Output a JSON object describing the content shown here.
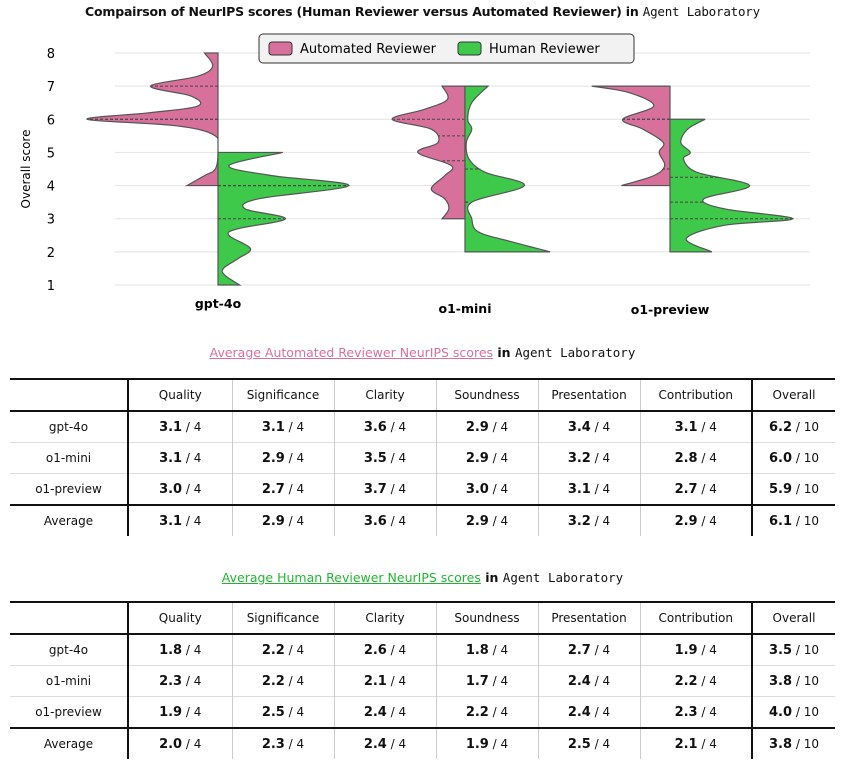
{
  "chart_data": {
    "type": "violin",
    "title_prefix": "Compairson of NeurIPS scores (Human Reviewer versus Automated Reviewer) in",
    "title_mono": "Agent Laboratory",
    "ylabel": "Overall score",
    "ylim": [
      1,
      8
    ],
    "yticks": [
      "1",
      "2",
      "3",
      "4",
      "5",
      "6",
      "7",
      "8"
    ],
    "categories": [
      "gpt-4o",
      "o1-mini",
      "o1-preview"
    ],
    "grid": true,
    "legend_placement": "top-center",
    "series": [
      {
        "name": "Automated Reviewer",
        "color": "#d8709c",
        "side": "left",
        "violins": [
          {
            "density": [
              [
                4,
                0.23
              ],
              [
                4.3,
                0.1
              ],
              [
                4.5,
                0.02
              ],
              [
                5,
                0.0
              ],
              [
                5.5,
                0.02
              ],
              [
                5.8,
                0.3
              ],
              [
                6,
                0.97
              ],
              [
                6.2,
                0.5
              ],
              [
                6.4,
                0.15
              ],
              [
                6.7,
                0.2
              ],
              [
                7,
                0.5
              ],
              [
                7.3,
                0.15
              ],
              [
                7.6,
                0.04
              ],
              [
                8,
                0.1
              ]
            ],
            "quartiles": [
              6,
              6,
              7
            ]
          },
          {
            "density": [
              [
                3,
                0.17
              ],
              [
                3.3,
                0.12
              ],
              [
                3.6,
                0.15
              ],
              [
                3.9,
                0.25
              ],
              [
                4.3,
                0.15
              ],
              [
                4.6,
                0.1
              ],
              [
                5,
                0.35
              ],
              [
                5.3,
                0.2
              ],
              [
                5.7,
                0.25
              ],
              [
                6,
                0.54
              ],
              [
                6.3,
                0.3
              ],
              [
                6.6,
                0.13
              ],
              [
                7,
                0.17
              ]
            ],
            "quartiles": [
              4.75,
              5.5,
              6
            ]
          },
          {
            "density": [
              [
                4,
                0.36
              ],
              [
                4.3,
                0.12
              ],
              [
                4.6,
                0.04
              ],
              [
                5,
                0.08
              ],
              [
                5.3,
                0.05
              ],
              [
                5.7,
                0.2
              ],
              [
                6,
                0.35
              ],
              [
                6.4,
                0.12
              ],
              [
                6.8,
                0.3
              ],
              [
                7,
                0.58
              ]
            ],
            "quartiles": [
              4.5,
              6,
              6
            ]
          }
        ]
      },
      {
        "name": "Human Reviewer",
        "color": "#3ec94b",
        "side": "right",
        "violins": [
          {
            "density": [
              [
                1,
                0.16
              ],
              [
                1.3,
                0.05
              ],
              [
                1.5,
                0.04
              ],
              [
                1.8,
                0.15
              ],
              [
                2.1,
                0.24
              ],
              [
                2.5,
                0.08
              ],
              [
                2.7,
                0.15
              ],
              [
                3,
                0.5
              ],
              [
                3.3,
                0.2
              ],
              [
                3.6,
                0.3
              ],
              [
                4,
                0.97
              ],
              [
                4.3,
                0.4
              ],
              [
                4.6,
                0.08
              ],
              [
                5,
                0.48
              ]
            ],
            "quartiles": [
              3,
              4,
              4
            ]
          },
          {
            "density": [
              [
                2,
                0.63
              ],
              [
                2.3,
                0.35
              ],
              [
                2.6,
                0.1
              ],
              [
                3,
                0.05
              ],
              [
                3.5,
                0.05
              ],
              [
                4,
                0.44
              ],
              [
                4.4,
                0.15
              ],
              [
                4.8,
                0.03
              ],
              [
                5.3,
                0.01
              ],
              [
                5.7,
                0.05
              ],
              [
                6,
                0.02
              ],
              [
                6.5,
                0.05
              ],
              [
                7,
                0.17
              ]
            ],
            "quartiles": [
              3.5,
              3.5,
              4.5
            ]
          },
          {
            "density": [
              [
                2,
                0.31
              ],
              [
                2.4,
                0.12
              ],
              [
                2.8,
                0.4
              ],
              [
                3,
                0.91
              ],
              [
                3.3,
                0.4
              ],
              [
                3.6,
                0.25
              ],
              [
                4,
                0.59
              ],
              [
                4.4,
                0.2
              ],
              [
                4.8,
                0.1
              ],
              [
                5,
                0.15
              ],
              [
                5.3,
                0.08
              ],
              [
                5.7,
                0.13
              ],
              [
                6,
                0.26
              ]
            ],
            "quartiles": [
              3,
              3.5,
              4.25
            ]
          }
        ]
      }
    ]
  },
  "tables": {
    "columns": [
      "Quality",
      "Significance",
      "Clarity",
      "Soundness",
      "Presentation",
      "Contribution",
      "Overall"
    ],
    "automated": {
      "title_link": "Average Automated Reviewer NeurIPS scores",
      "title_in": "in",
      "title_mono": "Agent Laboratory",
      "link_color": "#d8709c",
      "rows": [
        {
          "label": "gpt-4o",
          "cells": [
            [
              "3.1",
              "/ 4"
            ],
            [
              "3.1",
              "/ 4"
            ],
            [
              "3.6",
              "/ 4"
            ],
            [
              "2.9",
              "/ 4"
            ],
            [
              "3.4",
              "/ 4"
            ],
            [
              "3.1",
              "/ 4"
            ],
            [
              "6.2",
              "/ 10"
            ]
          ]
        },
        {
          "label": "o1-mini",
          "cells": [
            [
              "3.1",
              "/ 4"
            ],
            [
              "2.9",
              "/ 4"
            ],
            [
              "3.5",
              "/ 4"
            ],
            [
              "2.9",
              "/ 4"
            ],
            [
              "3.2",
              "/ 4"
            ],
            [
              "2.8",
              "/ 4"
            ],
            [
              "6.0",
              "/ 10"
            ]
          ]
        },
        {
          "label": "o1-preview",
          "cells": [
            [
              "3.0",
              "/ 4"
            ],
            [
              "2.7",
              "/ 4"
            ],
            [
              "3.7",
              "/ 4"
            ],
            [
              "3.0",
              "/ 4"
            ],
            [
              "3.1",
              "/ 4"
            ],
            [
              "2.7",
              "/ 4"
            ],
            [
              "5.9",
              "/ 10"
            ]
          ]
        },
        {
          "label": "Average",
          "cells": [
            [
              "3.1",
              "/ 4"
            ],
            [
              "2.9",
              "/ 4"
            ],
            [
              "3.6",
              "/ 4"
            ],
            [
              "2.9",
              "/ 4"
            ],
            [
              "3.2",
              "/ 4"
            ],
            [
              "2.9",
              "/ 4"
            ],
            [
              "6.1",
              "/ 10"
            ]
          ]
        }
      ]
    },
    "human": {
      "title_link": "Average Human Reviewer NeurIPS scores",
      "title_in": "in",
      "title_mono": "Agent Laboratory",
      "link_color": "#22b533",
      "rows": [
        {
          "label": "gpt-4o",
          "cells": [
            [
              "1.8",
              "/ 4"
            ],
            [
              "2.2",
              "/ 4"
            ],
            [
              "2.6",
              "/ 4"
            ],
            [
              "1.8",
              "/ 4"
            ],
            [
              "2.7",
              "/ 4"
            ],
            [
              "1.9",
              "/ 4"
            ],
            [
              "3.5",
              "/ 10"
            ]
          ]
        },
        {
          "label": "o1-mini",
          "cells": [
            [
              "2.3",
              "/ 4"
            ],
            [
              "2.2",
              "/ 4"
            ],
            [
              "2.1",
              "/ 4"
            ],
            [
              "1.7",
              "/ 4"
            ],
            [
              "2.4",
              "/ 4"
            ],
            [
              "2.2",
              "/ 4"
            ],
            [
              "3.8",
              "/ 10"
            ]
          ]
        },
        {
          "label": "o1-preview",
          "cells": [
            [
              "1.9",
              "/ 4"
            ],
            [
              "2.5",
              "/ 4"
            ],
            [
              "2.4",
              "/ 4"
            ],
            [
              "2.2",
              "/ 4"
            ],
            [
              "2.4",
              "/ 4"
            ],
            [
              "2.3",
              "/ 4"
            ],
            [
              "4.0",
              "/ 10"
            ]
          ]
        },
        {
          "label": "Average",
          "cells": [
            [
              "2.0",
              "/ 4"
            ],
            [
              "2.3",
              "/ 4"
            ],
            [
              "2.4",
              "/ 4"
            ],
            [
              "1.9",
              "/ 4"
            ],
            [
              "2.5",
              "/ 4"
            ],
            [
              "2.1",
              "/ 4"
            ],
            [
              "3.8",
              "/ 10"
            ]
          ]
        }
      ]
    }
  }
}
